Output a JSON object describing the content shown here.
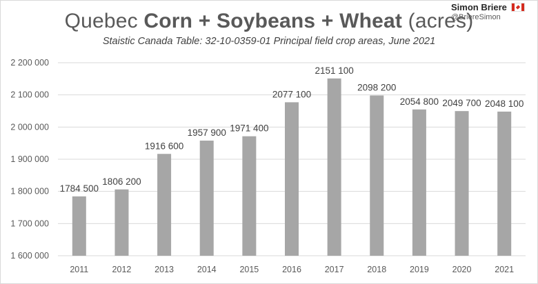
{
  "header": {
    "title_plain": "Quebec ",
    "title_bold": "Corn + Soybeans + Wheat",
    "title_suffix": " (acres)",
    "subtitle": "Staistic Canada Table: 32-10-0359-01 Principal field crop areas, June 2021",
    "author_name": "Simon Briere",
    "author_handle": "@BriereSimon",
    "flag_icon": "canada-flag-icon"
  },
  "chart_data": {
    "type": "bar",
    "title": "Quebec Corn + Soybeans + Wheat (acres)",
    "subtitle": "Staistic Canada Table: 32-10-0359-01 Principal field crop areas, June 2021",
    "categories": [
      "2011",
      "2012",
      "2013",
      "2014",
      "2015",
      "2016",
      "2017",
      "2018",
      "2019",
      "2020",
      "2021"
    ],
    "values": [
      1784500,
      1806200,
      1916600,
      1957900,
      1971400,
      2077100,
      2151100,
      2098200,
      2054800,
      2049700,
      2048100
    ],
    "value_labels": [
      "1784 500",
      "1806 200",
      "1916 600",
      "1957 900",
      "1971 400",
      "2077 100",
      "2151 100",
      "2098 200",
      "2054 800",
      "2049 700",
      "2048 100"
    ],
    "ylim": [
      1600000,
      2200000
    ],
    "yticks": [
      1600000,
      1700000,
      1800000,
      1900000,
      2000000,
      2100000,
      2200000
    ],
    "ytick_labels": [
      "1 600 000",
      "1 700 000",
      "1 800 000",
      "1 900 000",
      "2 000 000",
      "2 100 000",
      "2 200 000"
    ],
    "xlabel": "",
    "ylabel": "",
    "grid": true,
    "legend": "none",
    "colors": {
      "bar": "#a6a6a6",
      "grid": "#d9d9d9",
      "axis_text": "#595959",
      "label_text": "#404040"
    }
  }
}
